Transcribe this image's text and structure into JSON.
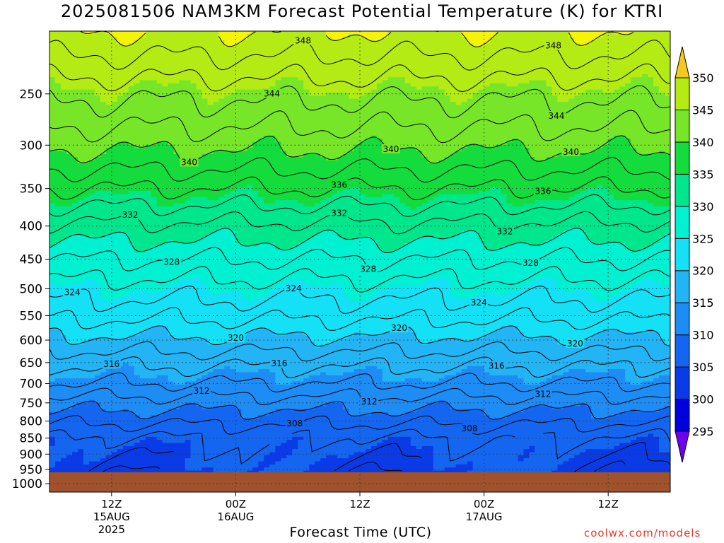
{
  "title": "2025081506 NAM3KM Forecast Potential Temperature (K) for KTRI",
  "credit": "coolwx.com/models",
  "chart_data": {
    "type": "heatmap",
    "title": "2025081506 NAM3KM Forecast Potential Temperature (K) for KTRI",
    "xlabel": "Forecast Time (UTC)",
    "ylabel": "",
    "x_ticks": [
      {
        "hour": 6,
        "lines": [
          "12Z",
          "15AUG",
          "2025"
        ]
      },
      {
        "hour": 18,
        "lines": [
          "00Z",
          "16AUG"
        ]
      },
      {
        "hour": 30,
        "lines": [
          "12Z"
        ]
      },
      {
        "hour": 42,
        "lines": [
          "00Z",
          "17AUG"
        ]
      },
      {
        "hour": 54,
        "lines": [
          "12Z"
        ]
      }
    ],
    "xlim_hours": [
      0,
      60
    ],
    "y_scale": "log-pressure",
    "y_ticks_hPa": [
      250,
      300,
      350,
      400,
      450,
      500,
      550,
      600,
      650,
      700,
      750,
      800,
      850,
      900,
      950,
      1000
    ],
    "ylim_hPa": [
      1030,
      200
    ],
    "surface_pressure_hPa": 960,
    "grid": true,
    "colorbar": {
      "ticks": [
        295,
        300,
        305,
        310,
        315,
        320,
        325,
        330,
        335,
        340,
        345,
        350
      ],
      "levels": [
        290,
        295,
        300,
        305,
        310,
        315,
        320,
        325,
        330,
        335,
        340,
        345,
        350,
        355
      ],
      "colors": [
        "#6d00ee",
        "#0000dc",
        "#0a3be6",
        "#1466f0",
        "#1e8cf5",
        "#22b4f5",
        "#14e1f5",
        "#00f0d2",
        "#00e68c",
        "#14dc3c",
        "#78e628",
        "#b4eb14",
        "#f5f500",
        "#f5c81e"
      ]
    },
    "contour_levels": [
      308,
      312,
      316,
      320,
      324,
      328,
      332,
      336,
      340,
      344,
      348
    ],
    "contour_labels": [
      {
        "value": 348,
        "hour": 24.5
      },
      {
        "value": 348,
        "hour": 48.7
      },
      {
        "value": 344,
        "hour": 21.5
      },
      {
        "value": 344,
        "hour": 49
      },
      {
        "value": 340,
        "hour": 13.5
      },
      {
        "value": 340,
        "hour": 33
      },
      {
        "value": 340,
        "hour": 50.4
      },
      {
        "value": 336,
        "hour": 28
      },
      {
        "value": 336,
        "hour": 47.7
      },
      {
        "value": 332,
        "hour": 7.8
      },
      {
        "value": 332,
        "hour": 28
      },
      {
        "value": 332,
        "hour": 44
      },
      {
        "value": 328,
        "hour": 11.8
      },
      {
        "value": 328,
        "hour": 30.8
      },
      {
        "value": 328,
        "hour": 46.5
      },
      {
        "value": 324,
        "hour": 2.2
      },
      {
        "value": 324,
        "hour": 23.6
      },
      {
        "value": 324,
        "hour": 41.5
      },
      {
        "value": 320,
        "hour": 18
      },
      {
        "value": 320,
        "hour": 33.8
      },
      {
        "value": 320,
        "hour": 50.8
      },
      {
        "value": 316,
        "hour": 6
      },
      {
        "value": 316,
        "hour": 22.2
      },
      {
        "value": 316,
        "hour": 43.2
      },
      {
        "value": 312,
        "hour": 14.7
      },
      {
        "value": 312,
        "hour": 30.9
      },
      {
        "value": 312,
        "hour": 47.7
      },
      {
        "value": 308,
        "hour": 23.7
      },
      {
        "value": 308,
        "hour": 40.6
      }
    ],
    "profile_description_K": {
      "bands_by_pressure_hPa": [
        {
          "p": 960,
          "theta": 304
        },
        {
          "p": 900,
          "theta": 305
        },
        {
          "p": 850,
          "theta": 306
        },
        {
          "p": 800,
          "theta": 308.5
        },
        {
          "p": 750,
          "theta": 311
        },
        {
          "p": 700,
          "theta": 314
        },
        {
          "p": 650,
          "theta": 316.5
        },
        {
          "p": 600,
          "theta": 319.5
        },
        {
          "p": 550,
          "theta": 322.5
        },
        {
          "p": 500,
          "theta": 325
        },
        {
          "p": 450,
          "theta": 328
        },
        {
          "p": 400,
          "theta": 331.5
        },
        {
          "p": 350,
          "theta": 336
        },
        {
          "p": 300,
          "theta": 340.5
        },
        {
          "p": 250,
          "theta": 344.5
        },
        {
          "p": 200,
          "theta": 350
        }
      ]
    }
  }
}
